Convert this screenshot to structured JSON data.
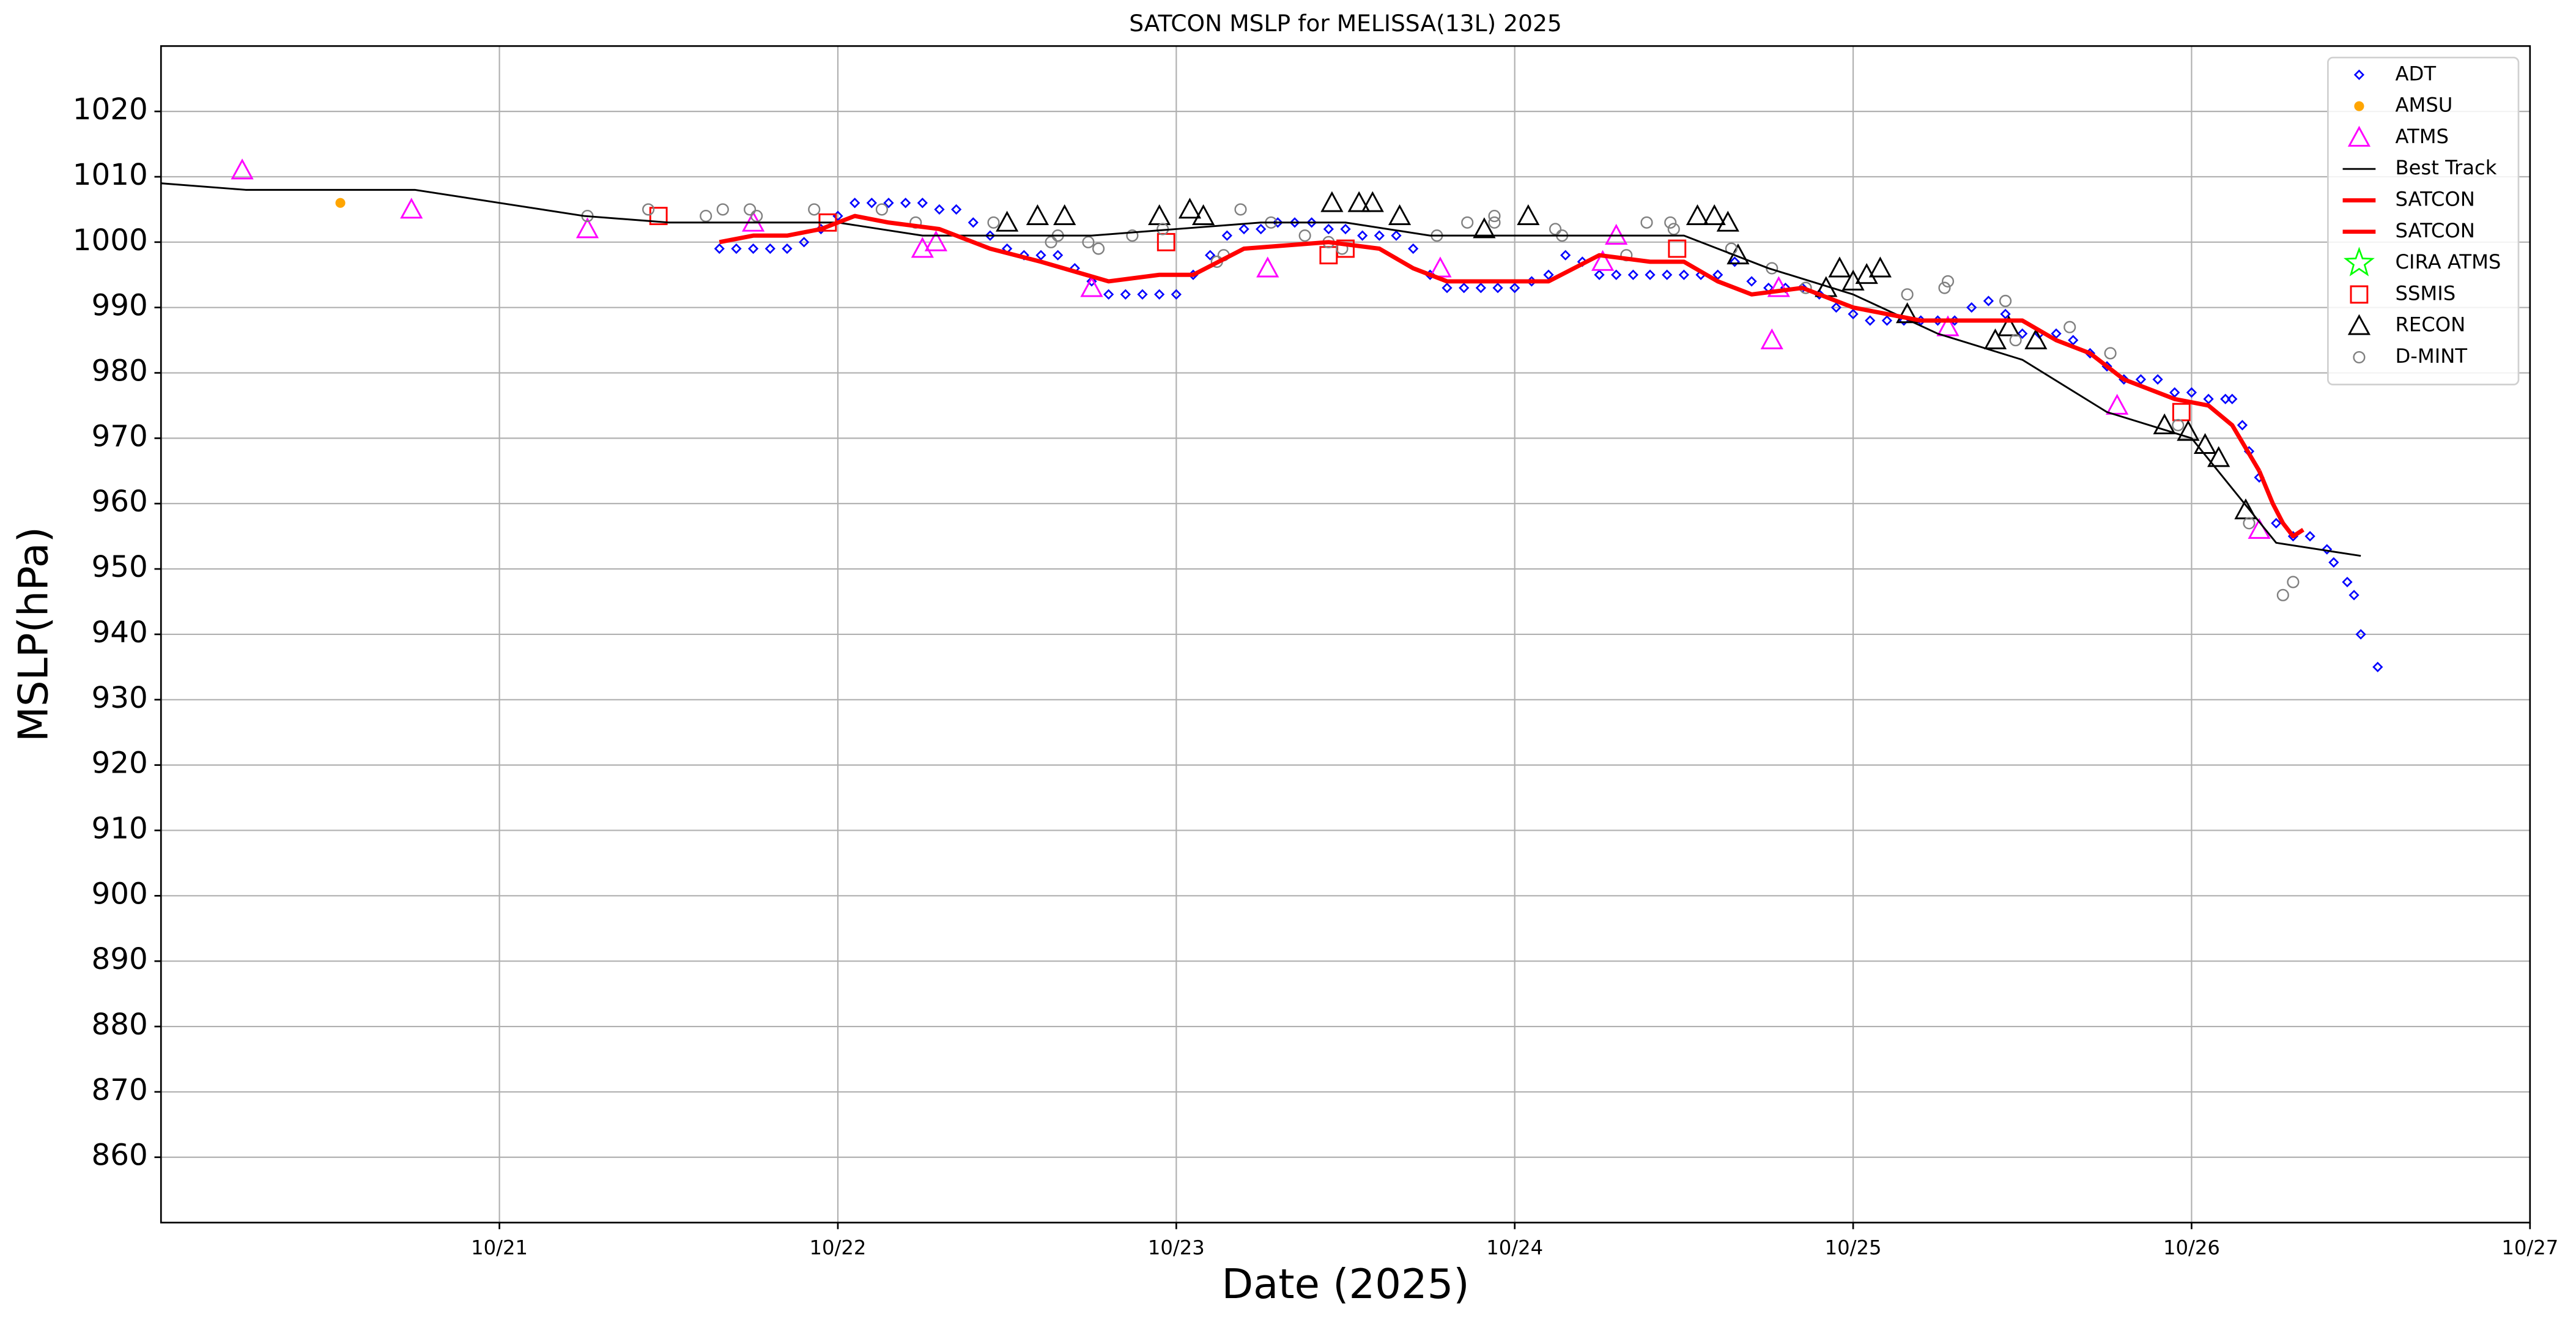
{
  "chart_data": {
    "type": "scatter",
    "title": "SATCON MSLP for MELISSA(13L) 2025",
    "x_label": "Date (2025)",
    "y_label": "MSLP(hPa)",
    "xlim": [
      20,
      27
    ],
    "xticks": [
      {
        "value": 21,
        "label": "10/21"
      },
      {
        "value": 22,
        "label": "10/22"
      },
      {
        "value": 23,
        "label": "10/23"
      },
      {
        "value": 24,
        "label": "10/24"
      },
      {
        "value": 25,
        "label": "10/25"
      },
      {
        "value": 26,
        "label": "10/26"
      },
      {
        "value": 27,
        "label": "10/27"
      }
    ],
    "ylim": [
      850,
      1030
    ],
    "yticks": [
      860,
      870,
      880,
      890,
      900,
      910,
      920,
      930,
      940,
      950,
      960,
      970,
      980,
      990,
      1000,
      1010,
      1020
    ],
    "grid": true,
    "legend": "upper right",
    "series": [
      {
        "name": "ADT",
        "color": "#0000ff",
        "marker": "diamond",
        "x": [
          21.65,
          21.7,
          21.75,
          21.8,
          21.85,
          21.9,
          21.95,
          22.0,
          22.05,
          22.1,
          22.15,
          22.2,
          22.25,
          22.3,
          22.35,
          22.4,
          22.45,
          22.5,
          22.55,
          22.6,
          22.65,
          22.7,
          22.75,
          22.8,
          22.85,
          22.9,
          22.95,
          23.0,
          23.05,
          23.1,
          23.15,
          23.2,
          23.25,
          23.3,
          23.35,
          23.4,
          23.45,
          23.5,
          23.55,
          23.6,
          23.65,
          23.7,
          23.75,
          23.8,
          23.85,
          23.9,
          23.95,
          24.0,
          24.05,
          24.1,
          24.15,
          24.2,
          24.25,
          24.3,
          24.35,
          24.4,
          24.45,
          24.5,
          24.55,
          24.6,
          24.65,
          24.7,
          24.75,
          24.8,
          24.85,
          24.9,
          24.95,
          25.0,
          25.05,
          25.1,
          25.15,
          25.2,
          25.25,
          25.3,
          25.35,
          25.4,
          25.45,
          25.5,
          25.55,
          25.6,
          25.65,
          25.7,
          25.75,
          25.8,
          25.85,
          25.9,
          25.95,
          26.0,
          26.05,
          26.1,
          26.12,
          26.15,
          26.17,
          26.2,
          26.25,
          26.3,
          26.35,
          26.4,
          26.42,
          26.46,
          26.48,
          26.5,
          26.55
        ],
        "values": [
          999,
          999,
          999,
          999,
          999,
          1000,
          1002,
          1004,
          1006,
          1006,
          1006,
          1006,
          1006,
          1005,
          1005,
          1003,
          1001,
          999,
          998,
          998,
          998,
          996,
          994,
          992,
          992,
          992,
          992,
          992,
          995,
          998,
          1001,
          1002,
          1002,
          1003,
          1003,
          1003,
          1002,
          1002,
          1001,
          1001,
          1001,
          999,
          995,
          993,
          993,
          993,
          993,
          993,
          994,
          995,
          998,
          997,
          995,
          995,
          995,
          995,
          995,
          995,
          995,
          995,
          997,
          994,
          993,
          993,
          993,
          992,
          990,
          989,
          988,
          988,
          988,
          988,
          988,
          988,
          990,
          991,
          989,
          986,
          986,
          986,
          985,
          983,
          981,
          979,
          979,
          979,
          977,
          977,
          976,
          976,
          976,
          972,
          968,
          964,
          957,
          955,
          955,
          953,
          951,
          948,
          946,
          940,
          935
        ]
      },
      {
        "name": "AMSU",
        "color": "#ffa500",
        "marker": "dot",
        "x": [
          20.53
        ],
        "values": [
          1006
        ]
      },
      {
        "name": "ATMS",
        "color": "#ff00ff",
        "marker": "triangle",
        "x": [
          20.24,
          20.74,
          21.26,
          21.75,
          22.25,
          22.29,
          22.75,
          23.27,
          23.78,
          24.26,
          24.3,
          24.76,
          24.78,
          25.28,
          25.78,
          26.2
        ],
        "values": [
          1011,
          1005,
          1002,
          1003,
          999,
          1000,
          993,
          996,
          996,
          997,
          1001,
          985,
          993,
          987,
          975,
          956
        ]
      },
      {
        "name": "Best Track",
        "color": "#000000",
        "marker": "line",
        "x": [
          20.0,
          20.25,
          20.5,
          20.75,
          21.0,
          21.25,
          21.5,
          21.75,
          22.0,
          22.25,
          22.5,
          22.75,
          23.0,
          23.25,
          23.5,
          23.75,
          24.0,
          24.25,
          24.5,
          24.75,
          25.0,
          25.25,
          25.5,
          25.75,
          26.0,
          26.25,
          26.5
        ],
        "values": [
          1009,
          1008,
          1008,
          1008,
          1006,
          1004,
          1003,
          1003,
          1003,
          1001,
          1001,
          1001,
          1002,
          1003,
          1003,
          1001,
          1001,
          1001,
          1001,
          996,
          992,
          986,
          982,
          974,
          970,
          954,
          952
        ]
      },
      {
        "name": "SATCON",
        "color": "#ff0000",
        "marker": "thick-line",
        "x": [
          21.65,
          21.75,
          21.85,
          21.95,
          22.05,
          22.15,
          22.3,
          22.45,
          22.6,
          22.8,
          22.95,
          23.05,
          23.2,
          23.45,
          23.6,
          23.7,
          23.8,
          23.9,
          24.1,
          24.25,
          24.4,
          24.5,
          24.6,
          24.7,
          24.85,
          25.0,
          25.2,
          25.4,
          25.5,
          25.6,
          25.7,
          25.8,
          25.95,
          26.05,
          26.12,
          26.2
        ],
        "values": [
          1000,
          1001,
          1001,
          1002,
          1004,
          1003,
          1002,
          999,
          997,
          994,
          995,
          995,
          999,
          1000,
          999,
          996,
          994,
          994,
          994,
          998,
          997,
          997,
          994,
          992,
          993,
          990,
          988,
          988,
          988,
          985,
          983,
          979,
          976,
          975,
          972,
          965
        ]
      },
      {
        "name": "SATCON",
        "color": "#ff0000",
        "marker": "thick-line",
        "x": [
          26.2,
          26.24,
          26.27,
          26.3,
          26.33
        ],
        "values": [
          965,
          960,
          957,
          955,
          956
        ]
      },
      {
        "name": "CIRA ATMS",
        "color": "#00ff00",
        "marker": "star",
        "x": [],
        "values": []
      },
      {
        "name": "SSMIS",
        "color": "#ff0000",
        "marker": "square",
        "x": [
          21.47,
          21.97,
          22.97,
          23.45,
          23.5,
          24.48,
          25.97
        ],
        "values": [
          1004,
          1003,
          1000,
          998,
          999,
          999,
          974
        ]
      },
      {
        "name": "RECON",
        "color": "#000000",
        "marker": "triangle",
        "x": [
          22.5,
          22.59,
          22.67,
          22.95,
          23.04,
          23.08,
          23.46,
          23.54,
          23.58,
          23.66,
          23.91,
          24.04,
          24.54,
          24.59,
          24.63,
          24.66,
          24.92,
          24.96,
          25.0,
          25.04,
          25.08,
          25.16,
          25.42,
          25.46,
          25.54,
          25.92,
          25.99,
          26.04,
          26.08,
          26.16
        ],
        "values": [
          1003,
          1004,
          1004,
          1004,
          1005,
          1004,
          1006,
          1006,
          1006,
          1004,
          1002,
          1004,
          1004,
          1004,
          1003,
          998,
          993,
          996,
          994,
          995,
          996,
          989,
          985,
          987,
          985,
          972,
          971,
          969,
          967,
          959
        ]
      },
      {
        "name": "D-MINT",
        "color": "#808080",
        "marker": "circle",
        "x": [
          21.26,
          21.44,
          21.61,
          21.66,
          21.74,
          21.76,
          21.93,
          22.13,
          22.23,
          22.46,
          22.63,
          22.65,
          22.74,
          22.77,
          22.87,
          22.96,
          23.12,
          23.14,
          23.19,
          23.28,
          23.38,
          23.45,
          23.49,
          23.77,
          23.86,
          23.94,
          23.94,
          24.12,
          24.14,
          24.33,
          24.39,
          24.46,
          24.47,
          24.64,
          24.76,
          24.86,
          25.16,
          25.27,
          25.28,
          25.45,
          25.48,
          25.64,
          25.76,
          25.96,
          26.17,
          26.27,
          26.3
        ],
        "values": [
          1004,
          1005,
          1004,
          1005,
          1005,
          1004,
          1005,
          1005,
          1003,
          1003,
          1000,
          1001,
          1000,
          999,
          1001,
          1002,
          997,
          998,
          1005,
          1003,
          1001,
          1000,
          999,
          1001,
          1003,
          1004,
          1003,
          1002,
          1001,
          998,
          1003,
          1003,
          1002,
          999,
          996,
          993,
          992,
          993,
          994,
          991,
          985,
          987,
          983,
          972,
          957,
          946,
          948
        ]
      }
    ]
  }
}
